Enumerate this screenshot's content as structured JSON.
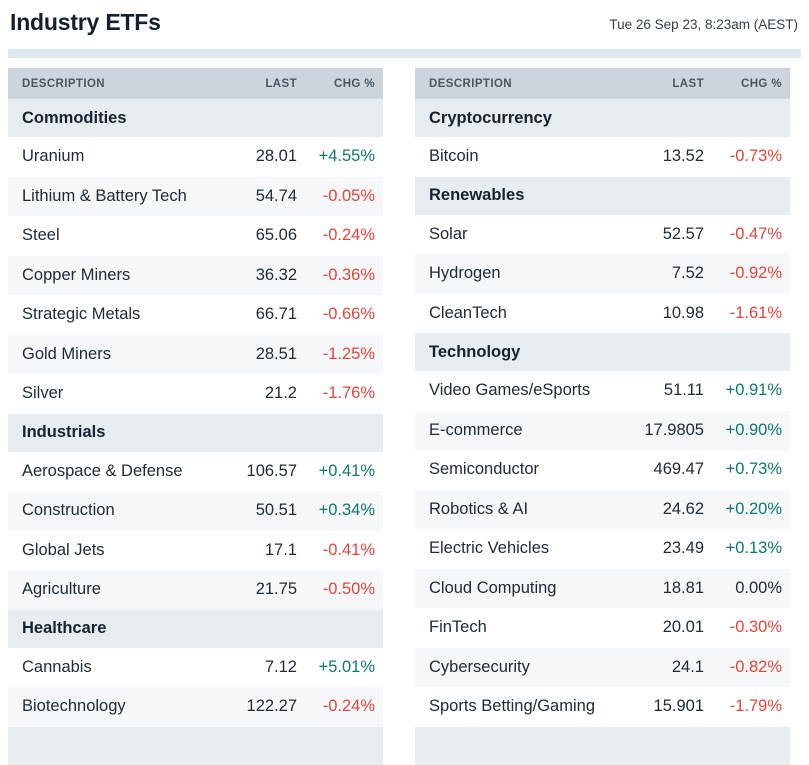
{
  "header": {
    "title": "Industry ETFs",
    "timestamp": "Tue 26 Sep 23, 8:23am (AEST)"
  },
  "columns": {
    "description": "DESCRIPTION",
    "last": "LAST",
    "chg": "CHG %"
  },
  "colors": {
    "positive": "#0d7a6a",
    "negative": "#e2453c",
    "neutral": "#222d38",
    "header_bg": "#ccd5dc",
    "section_bg": "#e7ecf0",
    "row_stripe": "#f5f7f8",
    "divider": "#dfe8ee"
  },
  "tables": [
    {
      "sections": [
        {
          "name": "Commodities",
          "rows": [
            {
              "description": "Uranium",
              "last": "28.01",
              "chg": "+4.55%",
              "direction": "up"
            },
            {
              "description": "Lithium & Battery Tech",
              "last": "54.74",
              "chg": "-0.05%",
              "direction": "down"
            },
            {
              "description": "Steel",
              "last": "65.06",
              "chg": "-0.24%",
              "direction": "down"
            },
            {
              "description": "Copper Miners",
              "last": "36.32",
              "chg": "-0.36%",
              "direction": "down"
            },
            {
              "description": "Strategic Metals",
              "last": "66.71",
              "chg": "-0.66%",
              "direction": "down"
            },
            {
              "description": "Gold Miners",
              "last": "28.51",
              "chg": "-1.25%",
              "direction": "down"
            },
            {
              "description": "Silver",
              "last": "21.2",
              "chg": "-1.76%",
              "direction": "down"
            }
          ]
        },
        {
          "name": "Industrials",
          "rows": [
            {
              "description": "Aerospace & Defense",
              "last": "106.57",
              "chg": "+0.41%",
              "direction": "up"
            },
            {
              "description": "Construction",
              "last": "50.51",
              "chg": "+0.34%",
              "direction": "up"
            },
            {
              "description": "Global Jets",
              "last": "17.1",
              "chg": "-0.41%",
              "direction": "down"
            },
            {
              "description": "Agriculture",
              "last": "21.75",
              "chg": "-0.50%",
              "direction": "down"
            }
          ]
        },
        {
          "name": "Healthcare",
          "rows": [
            {
              "description": "Cannabis",
              "last": "7.12",
              "chg": "+5.01%",
              "direction": "up"
            },
            {
              "description": "Biotechnology",
              "last": "122.27",
              "chg": "-0.24%",
              "direction": "down"
            }
          ]
        }
      ]
    },
    {
      "sections": [
        {
          "name": "Cryptocurrency",
          "rows": [
            {
              "description": "Bitcoin",
              "last": "13.52",
              "chg": "-0.73%",
              "direction": "down"
            }
          ]
        },
        {
          "name": "Renewables",
          "rows": [
            {
              "description": "Solar",
              "last": "52.57",
              "chg": "-0.47%",
              "direction": "down"
            },
            {
              "description": "Hydrogen",
              "last": "7.52",
              "chg": "-0.92%",
              "direction": "down"
            },
            {
              "description": "CleanTech",
              "last": "10.98",
              "chg": "-1.61%",
              "direction": "down"
            }
          ]
        },
        {
          "name": "Technology",
          "rows": [
            {
              "description": "Video Games/eSports",
              "last": "51.11",
              "chg": "+0.91%",
              "direction": "up"
            },
            {
              "description": "E-commerce",
              "last": "17.9805",
              "chg": "+0.90%",
              "direction": "up"
            },
            {
              "description": "Semiconductor",
              "last": "469.47",
              "chg": "+0.73%",
              "direction": "up"
            },
            {
              "description": "Robotics & AI",
              "last": "24.62",
              "chg": "+0.20%",
              "direction": "up"
            },
            {
              "description": "Electric Vehicles",
              "last": "23.49",
              "chg": "+0.13%",
              "direction": "up"
            },
            {
              "description": "Cloud Computing",
              "last": "18.81",
              "chg": "0.00%",
              "direction": "flat"
            },
            {
              "description": "FinTech",
              "last": "20.01",
              "chg": "-0.30%",
              "direction": "down"
            },
            {
              "description": "Cybersecurity",
              "last": "24.1",
              "chg": "-0.82%",
              "direction": "down"
            },
            {
              "description": "Sports Betting/Gaming",
              "last": "15.901",
              "chg": "-1.79%",
              "direction": "down"
            }
          ]
        }
      ]
    }
  ]
}
